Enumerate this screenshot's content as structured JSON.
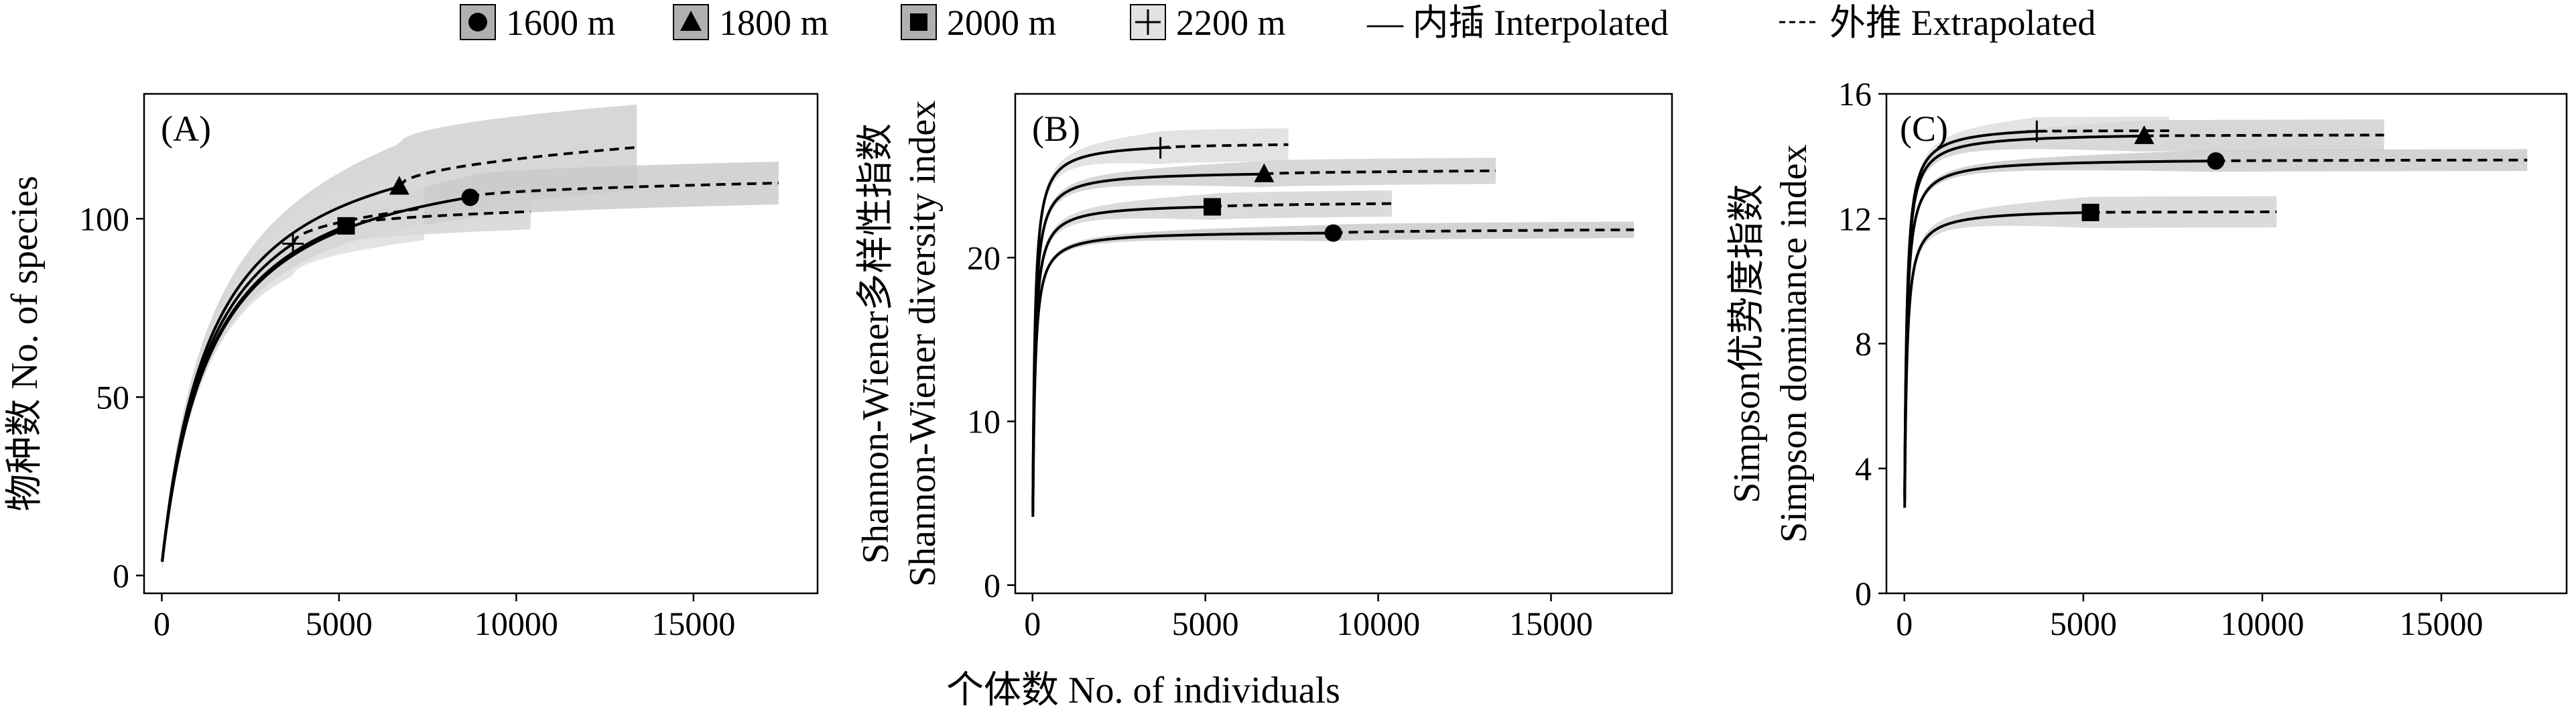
{
  "legend": {
    "items": [
      {
        "label": "1600 m",
        "marker": "circle"
      },
      {
        "label": "1800 m",
        "marker": "triangle"
      },
      {
        "label": "2000 m",
        "marker": "square"
      },
      {
        "label": "2200 m",
        "marker": "plus"
      }
    ],
    "interpolated": "— 内插 Interpolated",
    "extrapolated": "外推 Extrapolated"
  },
  "shared_xlabel": "个体数 No. of individuals",
  "colors": {
    "line": "#000000",
    "band_light": "#d0d0d0",
    "band_dark": "#a8a8a8"
  },
  "chart_data": [
    {
      "type": "line",
      "panel": "(A)",
      "ylabel": "物种数 No. of species",
      "xlim": [
        -500,
        18500
      ],
      "ylim": [
        -5,
        135
      ],
      "xticks": [
        0,
        5000,
        10000,
        15000
      ],
      "yticks": [
        0,
        50,
        100
      ],
      "series": [
        {
          "name": "1600 m",
          "marker": "circle",
          "n_obs": 8700,
          "obs_value": 106,
          "asymptote": 110,
          "ci": 6,
          "x_max": 17400
        },
        {
          "name": "1800 m",
          "marker": "triangle",
          "n_obs": 6700,
          "obs_value": 109,
          "asymptote": 120,
          "ci": 12,
          "x_max": 13400
        },
        {
          "name": "2000 m",
          "marker": "square",
          "n_obs": 5200,
          "obs_value": 98,
          "asymptote": 102,
          "ci": 5,
          "x_max": 10400
        },
        {
          "name": "2200 m",
          "marker": "plus",
          "n_obs": 3700,
          "obs_value": 93,
          "asymptote": 103,
          "ci": 9,
          "x_max": 7400
        }
      ]
    },
    {
      "type": "line",
      "panel": "(B)",
      "ylabel": "Shannon-Wiener多样性指数 Shannon-Wiener diversity index",
      "xlim": [
        -500,
        18500
      ],
      "ylim": [
        -0.5,
        30
      ],
      "xticks": [
        0,
        5000,
        10000,
        15000
      ],
      "yticks": [
        0,
        10,
        20
      ],
      "series": [
        {
          "name": "1600 m",
          "marker": "circle",
          "n_obs": 8700,
          "obs_value": 21.5,
          "asymptote": 21.7,
          "ci": 0.5,
          "x_max": 17400
        },
        {
          "name": "1800 m",
          "marker": "triangle",
          "n_obs": 6700,
          "obs_value": 25.1,
          "asymptote": 25.3,
          "ci": 0.8,
          "x_max": 13400
        },
        {
          "name": "2000 m",
          "marker": "square",
          "n_obs": 5200,
          "obs_value": 23.1,
          "asymptote": 23.3,
          "ci": 0.8,
          "x_max": 10400
        },
        {
          "name": "2200 m",
          "marker": "plus",
          "n_obs": 3700,
          "obs_value": 26.7,
          "asymptote": 26.9,
          "ci": 1.0,
          "x_max": 7400
        }
      ]
    },
    {
      "type": "line",
      "panel": "(C)",
      "ylabel": "Simpson优势度指数 Simpson dominance index",
      "xlim": [
        -500,
        18500
      ],
      "ylim": [
        0,
        16
      ],
      "xticks": [
        0,
        5000,
        10000,
        15000
      ],
      "yticks": [
        0,
        4,
        8,
        12,
        16
      ],
      "series": [
        {
          "name": "1600 m",
          "marker": "circle",
          "n_obs": 8700,
          "obs_value": 13.85,
          "asymptote": 13.88,
          "ci": 0.35,
          "x_max": 17400
        },
        {
          "name": "1800 m",
          "marker": "triangle",
          "n_obs": 6700,
          "obs_value": 14.65,
          "asymptote": 14.68,
          "ci": 0.5,
          "x_max": 13400
        },
        {
          "name": "2000 m",
          "marker": "square",
          "n_obs": 5200,
          "obs_value": 12.2,
          "asymptote": 12.22,
          "ci": 0.5,
          "x_max": 10400
        },
        {
          "name": "2200 m",
          "marker": "plus",
          "n_obs": 3700,
          "obs_value": 14.8,
          "asymptote": 14.82,
          "ci": 0.45,
          "x_max": 7400
        }
      ]
    }
  ]
}
